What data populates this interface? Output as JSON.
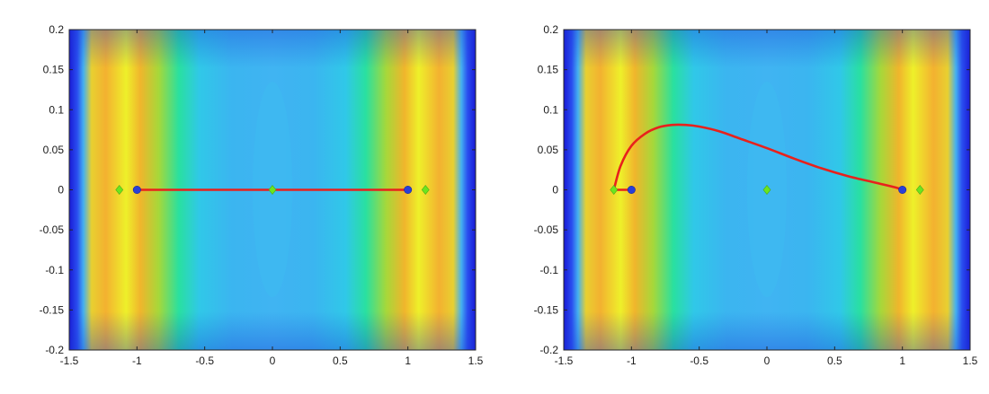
{
  "chart_data": [
    {
      "type": "line",
      "title": "",
      "xlabel": "",
      "ylabel": "",
      "xlim": [
        -1.5,
        1.5
      ],
      "ylim": [
        -0.2,
        0.2
      ],
      "xticks": [
        "-1.5",
        "-1",
        "-0.5",
        "0",
        "0.5",
        "1",
        "1.5"
      ],
      "yticks": [
        "0.2",
        "0.15",
        "0.1",
        "0.05",
        "0",
        "-0.05",
        "-0.1",
        "-0.15",
        "-0.2"
      ],
      "background": "heatmap",
      "grid": false,
      "series": [
        {
          "kind": "line",
          "color": "#e8211c",
          "points": [
            [
              -1.0,
              0
            ],
            [
              1.0,
              0
            ]
          ]
        },
        {
          "kind": "markers",
          "marker": "circle",
          "color": "#2a3fd6",
          "points": [
            [
              -1.0,
              0
            ],
            [
              1.0,
              0
            ]
          ]
        },
        {
          "kind": "markers",
          "marker": "diamond",
          "color": "#6be51f",
          "points": [
            [
              -1.13,
              0
            ],
            [
              0.0,
              0
            ],
            [
              1.13,
              0
            ]
          ]
        }
      ]
    },
    {
      "type": "line",
      "title": "",
      "xlabel": "",
      "ylabel": "",
      "xlim": [
        -1.5,
        1.5
      ],
      "ylim": [
        -0.2,
        0.2
      ],
      "xticks": [
        "-1.5",
        "-1",
        "-0.5",
        "0",
        "0.5",
        "1",
        "1.5"
      ],
      "yticks": [
        "0.2",
        "0.15",
        "0.1",
        "0.05",
        "0",
        "-0.05",
        "-0.1",
        "-0.15",
        "-0.2"
      ],
      "background": "heatmap",
      "grid": false,
      "series": [
        {
          "kind": "line",
          "color": "#e8211c",
          "points": [
            [
              -1.13,
              0
            ],
            [
              -1.08,
              0.03
            ],
            [
              -1.0,
              0.055
            ],
            [
              -0.9,
              0.07
            ],
            [
              -0.8,
              0.078
            ],
            [
              -0.7,
              0.081
            ],
            [
              -0.6,
              0.081
            ],
            [
              -0.5,
              0.079
            ],
            [
              -0.35,
              0.073
            ],
            [
              -0.2,
              0.064
            ],
            [
              0.0,
              0.052
            ],
            [
              0.2,
              0.039
            ],
            [
              0.4,
              0.027
            ],
            [
              0.6,
              0.017
            ],
            [
              0.8,
              0.009
            ],
            [
              0.95,
              0.003
            ],
            [
              1.0,
              0
            ]
          ]
        },
        {
          "kind": "line",
          "color": "#e8211c",
          "points": [
            [
              -1.13,
              0
            ],
            [
              -1.0,
              0
            ]
          ]
        },
        {
          "kind": "markers",
          "marker": "circle",
          "color": "#2a3fd6",
          "points": [
            [
              -1.0,
              0
            ],
            [
              1.0,
              0
            ]
          ]
        },
        {
          "kind": "markers",
          "marker": "diamond",
          "color": "#6be51f",
          "points": [
            [
              -1.13,
              0
            ],
            [
              0.0,
              0
            ],
            [
              1.13,
              0
            ]
          ]
        }
      ]
    }
  ]
}
